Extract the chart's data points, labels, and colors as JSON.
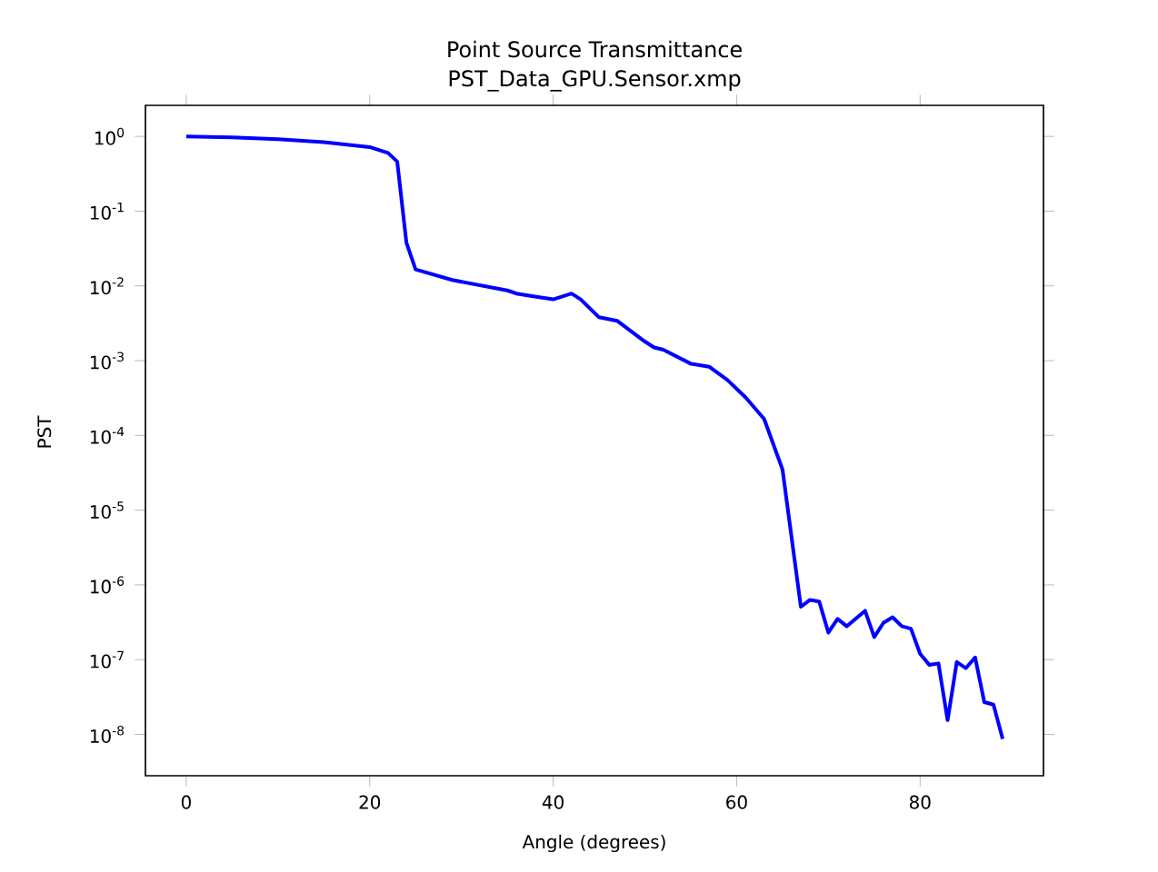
{
  "chart_data": {
    "type": "line",
    "title": "Point Source Transmittance",
    "subtitle": "PST_Data_GPU.Sensor.xmp",
    "xlabel": "Angle (degrees)",
    "ylabel": "PST",
    "log": "y",
    "grid": false,
    "marker": "none",
    "line_style": "solid",
    "xlim": [
      -4.45,
      93.45
    ],
    "ylim": [
      2.8e-09,
      2.6
    ],
    "xticks": [
      0,
      20,
      40,
      60,
      80
    ],
    "yticks": [
      {
        "value": 1,
        "label": "10$^{0}$"
      },
      {
        "value": 0.1,
        "label": "10$^{-1}$"
      },
      {
        "value": 0.01,
        "label": "10$^{-2}$"
      },
      {
        "value": 0.001,
        "label": "10$^{-3}$"
      },
      {
        "value": 0.0001,
        "label": "10$^{-4}$"
      },
      {
        "value": 1e-05,
        "label": "10$^{-5}$"
      },
      {
        "value": 1e-06,
        "label": "10$^{-6}$"
      },
      {
        "value": 1e-07,
        "label": "10$^{-7}$"
      },
      {
        "value": 1e-08,
        "label": "10$^{-8}$"
      }
    ],
    "x": [
      0,
      5,
      10,
      15,
      20,
      22,
      23,
      24,
      25,
      29,
      35,
      36,
      38,
      40,
      42,
      43,
      45,
      47,
      50,
      51,
      52,
      55,
      57,
      59,
      61,
      63,
      65,
      67,
      68,
      69,
      70,
      71,
      72,
      74,
      75,
      76,
      77,
      78,
      79,
      80,
      81,
      82,
      83,
      84,
      85,
      86,
      87,
      88,
      89
    ],
    "series": [
      {
        "color": "#0000ff",
        "values": [
          1.0,
          0.97,
          0.92,
          0.84,
          0.72,
          0.6,
          0.46,
          0.038,
          0.0166,
          0.012,
          0.0087,
          0.0079,
          0.0072,
          0.0066,
          0.0079,
          0.0066,
          0.0038,
          0.0034,
          0.0018,
          0.0015,
          0.0014,
          0.00091,
          0.00083,
          0.00055,
          0.00032,
          0.000166,
          3.5e-05,
          5.1e-07,
          6.3e-07,
          6e-07,
          2.3e-07,
          3.5e-07,
          2.8e-07,
          4.5e-07,
          2e-07,
          3.1e-07,
          3.7e-07,
          2.8e-07,
          2.6e-07,
          1.2e-07,
          8.5e-08,
          8.9e-08,
          1.55e-08,
          9.3e-08,
          7.7e-08,
          1.07e-07,
          2.7e-08,
          2.5e-08,
          8.7e-09
        ]
      }
    ]
  }
}
